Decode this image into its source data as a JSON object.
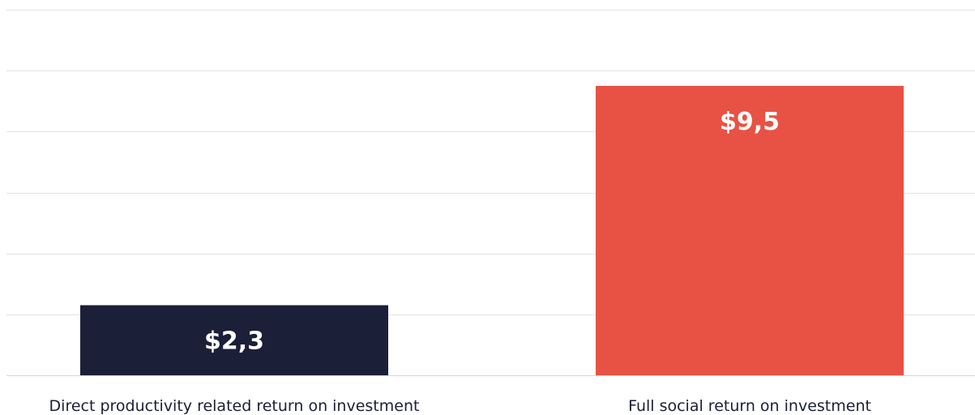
{
  "chart_data": {
    "type": "bar",
    "categories": [
      "Direct productivity related return on investment",
      "Full social return on investment"
    ],
    "values": [
      2.3,
      9.5
    ],
    "value_labels": [
      "$2,3",
      "$9,5"
    ],
    "bar_colors": [
      "#1b1f38",
      "#e85244"
    ],
    "ylim": [
      0,
      12
    ],
    "grid": true,
    "gridline_count": 6,
    "legend": "none",
    "title": "",
    "xlabel": "",
    "ylabel": ""
  }
}
